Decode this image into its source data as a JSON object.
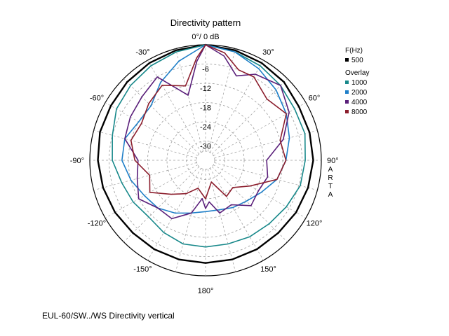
{
  "chart_data": {
    "type": "polar",
    "title": "Directivity pattern",
    "top_label": "0°/ 0 dB",
    "radial_unit": "dB",
    "radial_range": [
      -36,
      0
    ],
    "ring_values": [
      0,
      -6,
      -12,
      -18,
      -24,
      -30,
      -36
    ],
    "ring_labels": [
      "-6",
      "-12",
      "-18",
      "-24",
      "-30"
    ],
    "angle_labels": [
      {
        "angle": -30,
        "text": "-30°"
      },
      {
        "angle": 30,
        "text": "30°"
      },
      {
        "angle": -60,
        "text": "-60°"
      },
      {
        "angle": 60,
        "text": "60°"
      },
      {
        "angle": -90,
        "text": "-90°"
      },
      {
        "angle": 90,
        "text": "90°"
      },
      {
        "angle": -120,
        "text": "-120°"
      },
      {
        "angle": 120,
        "text": "120°"
      },
      {
        "angle": -150,
        "text": "-150°"
      },
      {
        "angle": 150,
        "text": "150°"
      },
      {
        "angle": 180,
        "text": "180°"
      }
    ],
    "brand_label": "ARTA",
    "legend": {
      "header": "F(Hz)",
      "overlay_header": "Overlay",
      "position": "right"
    },
    "series": [
      {
        "name": "500",
        "color": "#000000",
        "role": "main",
        "angles": [
          0,
          15,
          30,
          45,
          60,
          75,
          90,
          105,
          120,
          135,
          150,
          165,
          180,
          195,
          210,
          225,
          240,
          255,
          270,
          285,
          300,
          315,
          330,
          345
        ],
        "values": [
          0,
          -0.5,
          -1,
          -1.5,
          -2.5,
          -2.5,
          -2.5,
          -3,
          -3.5,
          -4,
          -4,
          -4,
          -4,
          -4,
          -4,
          -4,
          -3.5,
          -3,
          -2.5,
          -2,
          -2,
          -1.5,
          -1,
          -0.5
        ]
      },
      {
        "name": "1000",
        "color": "#17888a",
        "role": "overlay",
        "angles": [
          0,
          15,
          30,
          45,
          60,
          75,
          90,
          105,
          120,
          135,
          150,
          165,
          180,
          195,
          210,
          225,
          240,
          255,
          270,
          285,
          300,
          315,
          330,
          345
        ],
        "values": [
          0,
          -1,
          -2,
          -3,
          -4,
          -4,
          -5,
          -5.5,
          -7,
          -8,
          -8.5,
          -9,
          -9,
          -9,
          -10,
          -11,
          -10,
          -9,
          -7,
          -6,
          -4,
          -3,
          -2,
          -1
        ]
      },
      {
        "name": "2000",
        "color": "#1f7fc8",
        "role": "overlay",
        "angles": [
          0,
          15,
          30,
          45,
          60,
          75,
          90,
          105,
          120,
          135,
          150,
          165,
          180,
          195,
          210,
          225,
          240,
          255,
          270,
          285,
          300,
          315,
          330,
          345
        ],
        "values": [
          0,
          -1,
          -3,
          -5,
          -7,
          -9,
          -11,
          -13,
          -16,
          -18,
          -19,
          -20,
          -20,
          -19,
          -17,
          -15,
          -14,
          -12,
          -10,
          -10,
          -12,
          -12,
          -8,
          -4
        ]
      },
      {
        "name": "4000",
        "color": "#5a1f7a",
        "role": "overlay",
        "angles": [
          0,
          10,
          20,
          30,
          45,
          60,
          75,
          90,
          105,
          120,
          135,
          150,
          165,
          175,
          180,
          185,
          195,
          210,
          225,
          240,
          255,
          270,
          285,
          300,
          315,
          330,
          345,
          355
        ],
        "values": [
          0,
          -3,
          -8,
          -5,
          -3,
          -6,
          -11,
          -17,
          -16,
          -17,
          -16,
          -20,
          -19,
          -23,
          -21,
          -24,
          -19,
          -15,
          -15,
          -12,
          -14,
          -15,
          -10,
          -9,
          -8,
          -6,
          -15,
          -5
        ]
      },
      {
        "name": "8000",
        "color": "#8b1d2c",
        "role": "overlay",
        "angles": [
          0,
          10,
          20,
          30,
          45,
          60,
          75,
          90,
          105,
          120,
          135,
          150,
          165,
          180,
          195,
          210,
          225,
          240,
          255,
          270,
          285,
          300,
          315,
          330,
          345,
          355
        ],
        "values": [
          0,
          -2,
          -6,
          -6,
          -9,
          -7,
          -12,
          -11,
          -13,
          -20,
          -24,
          -23,
          -29,
          -24,
          -27,
          -24,
          -21,
          -16,
          -18,
          -14,
          -12,
          -13,
          -11,
          -9,
          -12,
          -4
        ]
      }
    ]
  },
  "caption": "EUL-60/SW../WS Directivity vertical"
}
